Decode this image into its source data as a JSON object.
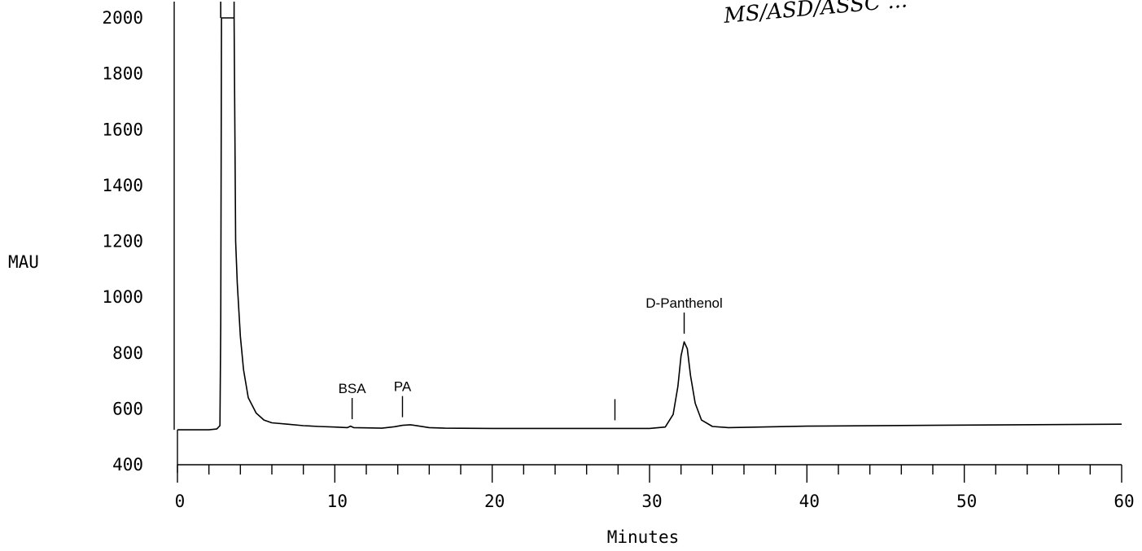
{
  "chart_data": {
    "type": "line",
    "title": "",
    "xlabel": "Minutes",
    "ylabel": "MAU",
    "xlim": [
      0,
      60
    ],
    "ylim": [
      400,
      2000
    ],
    "x_ticks": [
      0,
      10,
      20,
      30,
      40,
      50,
      60
    ],
    "y_ticks": [
      400,
      600,
      800,
      1000,
      1200,
      1400,
      1600,
      1800,
      2000
    ],
    "grid": false,
    "handwritten_note": "MS/ASD/ASSC ... ",
    "series": [
      {
        "x": [
          0.0,
          2.0,
          2.5,
          2.7,
          2.75,
          2.8,
          3.0,
          3.2,
          3.4,
          3.5,
          3.6,
          3.7,
          3.8,
          4.0,
          4.2,
          4.5,
          5.0,
          5.5,
          6.0,
          7.0,
          8.0,
          9.0,
          10.0,
          10.8,
          11.0,
          11.2,
          12.0,
          13.0,
          13.8,
          14.3,
          14.8,
          15.3,
          16.0,
          17.0,
          20.0,
          25.0,
          30.0,
          31.0,
          31.5,
          31.8,
          32.0,
          32.2,
          32.4,
          32.6,
          32.9,
          33.3,
          34.0,
          35.0,
          40.0,
          50.0,
          60.0
        ],
        "y": [
          525,
          525,
          528,
          540,
          900,
          2000,
          2000,
          2000,
          2000,
          2000,
          2000,
          1200,
          1050,
          860,
          740,
          640,
          585,
          560,
          550,
          545,
          540,
          537,
          535,
          533,
          538,
          533,
          532,
          531,
          536,
          541,
          543,
          539,
          533,
          531,
          530,
          530,
          530,
          535,
          580,
          680,
          790,
          840,
          815,
          720,
          620,
          560,
          537,
          533,
          538,
          542,
          545
        ]
      }
    ],
    "annotations": [
      {
        "text": "BSA",
        "x": 11.1,
        "y": 534
      },
      {
        "text": "PA",
        "x": 14.3,
        "y": 541
      },
      {
        "text": "",
        "x": 27.8,
        "y": 530
      },
      {
        "text": "D-Panthenol",
        "x": 32.2,
        "y": 840
      }
    ]
  }
}
